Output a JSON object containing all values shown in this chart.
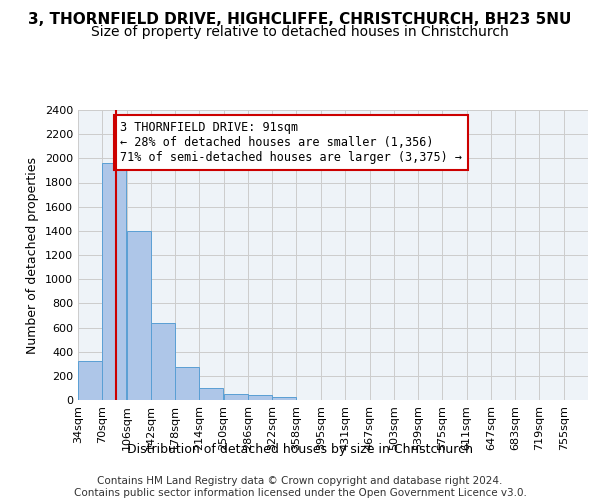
{
  "title_line1": "3, THORNFIELD DRIVE, HIGHCLIFFE, CHRISTCHURCH, BH23 5NU",
  "title_line2": "Size of property relative to detached houses in Christchurch",
  "xlabel": "Distribution of detached houses by size in Christchurch",
  "ylabel": "Number of detached properties",
  "bin_labels": [
    "34sqm",
    "70sqm",
    "106sqm",
    "142sqm",
    "178sqm",
    "214sqm",
    "250sqm",
    "286sqm",
    "322sqm",
    "358sqm",
    "395sqm",
    "431sqm",
    "467sqm",
    "503sqm",
    "539sqm",
    "575sqm",
    "611sqm",
    "647sqm",
    "683sqm",
    "719sqm",
    "755sqm"
  ],
  "bin_left_edges": [
    34,
    70,
    106,
    142,
    178,
    214,
    250,
    286,
    322,
    358,
    395,
    431,
    467,
    503,
    539,
    575,
    611,
    647,
    683,
    719,
    755
  ],
  "bar_heights": [
    320,
    1960,
    1400,
    640,
    270,
    100,
    48,
    38,
    25,
    0,
    0,
    0,
    0,
    0,
    0,
    0,
    0,
    0,
    0,
    0,
    0
  ],
  "bar_color": "#aec6e8",
  "bar_edgecolor": "#5a9fd4",
  "property_size": 91,
  "red_line_color": "#cc0000",
  "annotation_text": "3 THORNFIELD DRIVE: 91sqm\n← 28% of detached houses are smaller (1,356)\n71% of semi-detached houses are larger (3,375) →",
  "annotation_box_edgecolor": "#cc0000",
  "annotation_facecolor": "white",
  "ylim": [
    0,
    2400
  ],
  "yticks": [
    0,
    200,
    400,
    600,
    800,
    1000,
    1200,
    1400,
    1600,
    1800,
    2000,
    2200,
    2400
  ],
  "grid_color": "#cccccc",
  "background_color": "#eef3f8",
  "footer_text": "Contains HM Land Registry data © Crown copyright and database right 2024.\nContains public sector information licensed under the Open Government Licence v3.0.",
  "title_fontsize": 11,
  "subtitle_fontsize": 10,
  "axis_label_fontsize": 9,
  "tick_fontsize": 8,
  "annotation_fontsize": 8.5,
  "footer_fontsize": 7.5
}
